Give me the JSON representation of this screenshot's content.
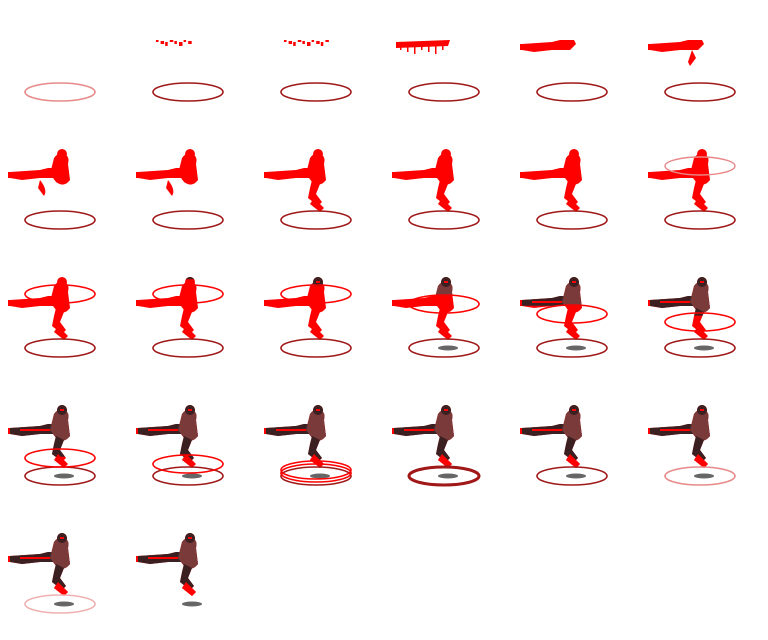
{
  "sprite_sheet": {
    "columns": 6,
    "frame_count": 26,
    "colors": {
      "background": "#ffffff",
      "silhouette": "#ff0000",
      "ring_dark": "#a01818",
      "ring_light": "#e88888",
      "body_dark": "#3a2020",
      "body_mid": "#7a3a3a",
      "shadow": "#666666"
    },
    "frames": [
      {
        "form": "none",
        "reveal": 0,
        "rings": [
          "ground-faint"
        ],
        "shadow": false
      },
      {
        "form": "specks",
        "reveal": 0,
        "rings": [
          "ground"
        ],
        "shadow": false
      },
      {
        "form": "specks",
        "reveal": 0,
        "rings": [
          "ground"
        ],
        "shadow": false
      },
      {
        "form": "drips",
        "reveal": 0,
        "rings": [
          "ground"
        ],
        "shadow": false
      },
      {
        "form": "gun",
        "reveal": 0,
        "rings": [
          "ground"
        ],
        "shadow": false
      },
      {
        "form": "gun",
        "reveal": 0,
        "rings": [
          "ground"
        ],
        "shadow": false
      },
      {
        "form": "torso",
        "reveal": 0,
        "rings": [
          "ground"
        ],
        "shadow": false
      },
      {
        "form": "torso",
        "reveal": 0,
        "rings": [
          "ground"
        ],
        "shadow": false
      },
      {
        "form": "full",
        "reveal": 0,
        "rings": [
          "ground"
        ],
        "shadow": false
      },
      {
        "form": "full",
        "reveal": 0,
        "rings": [
          "ground"
        ],
        "shadow": false
      },
      {
        "form": "full",
        "reveal": 0,
        "rings": [
          "ground"
        ],
        "shadow": false
      },
      {
        "form": "full",
        "reveal": 0,
        "rings": [
          "ground",
          "top-faint"
        ],
        "shadow": false
      },
      {
        "form": "full",
        "reveal": 0,
        "rings": [
          "ground",
          "top"
        ],
        "shadow": false
      },
      {
        "form": "full",
        "reveal": 0.05,
        "rings": [
          "ground",
          "top"
        ],
        "shadow": false
      },
      {
        "form": "full",
        "reveal": 0.15,
        "rings": [
          "ground",
          "top"
        ],
        "shadow": false
      },
      {
        "form": "full",
        "reveal": 0.3,
        "rings": [
          "ground",
          "upper"
        ],
        "shadow": true
      },
      {
        "form": "full",
        "reveal": 0.45,
        "rings": [
          "ground",
          "upper-mid"
        ],
        "shadow": true
      },
      {
        "form": "full",
        "reveal": 0.6,
        "rings": [
          "ground",
          "mid"
        ],
        "shadow": true
      },
      {
        "form": "full",
        "reveal": 0.8,
        "rings": [
          "ground",
          "low"
        ],
        "shadow": true
      },
      {
        "form": "full",
        "reveal": 0.85,
        "rings": [
          "ground",
          "lower"
        ],
        "shadow": true
      },
      {
        "form": "full",
        "reveal": 0.9,
        "rings": [
          "ground",
          "double"
        ],
        "shadow": true
      },
      {
        "form": "full",
        "reveal": 0.95,
        "rings": [
          "ground-bold"
        ],
        "shadow": true
      },
      {
        "form": "full",
        "reveal": 1,
        "rings": [
          "ground"
        ],
        "shadow": true
      },
      {
        "form": "full",
        "reveal": 1,
        "rings": [
          "ground-faint"
        ],
        "shadow": true
      },
      {
        "form": "full",
        "reveal": 1,
        "rings": [
          "ground-faintest"
        ],
        "shadow": true
      },
      {
        "form": "full",
        "reveal": 1,
        "rings": [],
        "shadow": true
      }
    ]
  }
}
